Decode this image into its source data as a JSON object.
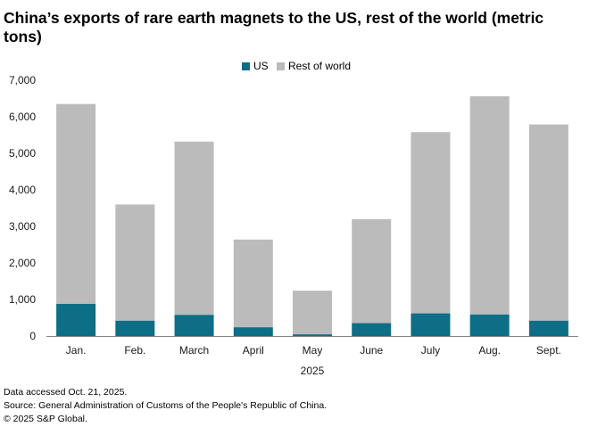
{
  "title": "China’s exports of rare earth magnets to the US, rest of the world (metric tons)",
  "colors": {
    "us": "#0d6e86",
    "rest": "#bbbbbc",
    "axis": "#888888"
  },
  "chart_data": {
    "type": "bar",
    "stacked": true,
    "categories": [
      "Jan.",
      "Feb.",
      "March",
      "April",
      "May",
      "June",
      "July",
      "Aug.",
      "Sept."
    ],
    "series": [
      {
        "name": "US",
        "values": [
          880,
          420,
          580,
          240,
          46,
          353,
          620,
          590,
          420
        ]
      },
      {
        "name": "Rest of world",
        "values": [
          5470,
          3180,
          4740,
          2400,
          1196,
          2847,
          4960,
          5970,
          5370
        ]
      }
    ],
    "totals": [
      6350,
      3600,
      5320,
      2640,
      1242,
      3200,
      5580,
      6560,
      5790
    ],
    "ylim": [
      0,
      7000
    ],
    "yticks": [
      0,
      1000,
      2000,
      3000,
      4000,
      5000,
      6000,
      7000
    ],
    "ytick_labels": [
      "0",
      "1,000",
      "2,000",
      "3,000",
      "4,000",
      "5,000",
      "6,000",
      "7,000"
    ],
    "xlabel": "2025",
    "ylabel": "",
    "legend": [
      "US",
      "Rest of world"
    ],
    "legend_position": "top-center",
    "grid": false
  },
  "footer": {
    "line1": "Data accessed Oct. 21, 2025.",
    "line2": "Source: General Administration of Customs of the People's Republic of China.",
    "line3": "© 2025 S&P Global."
  }
}
